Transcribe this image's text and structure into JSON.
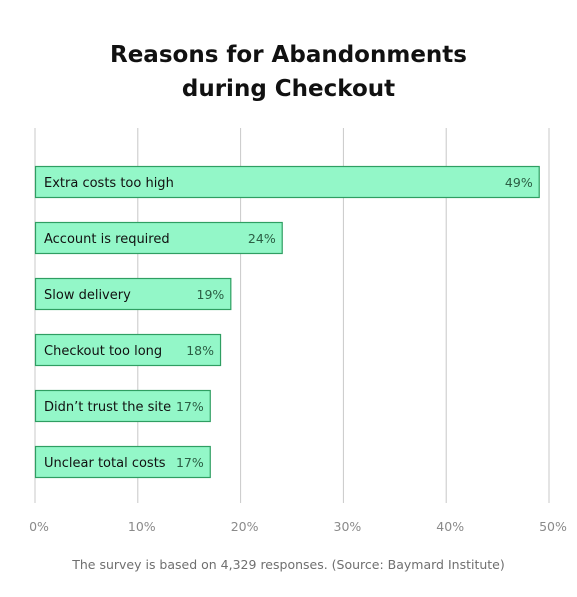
{
  "chart_data": {
    "type": "bar",
    "orientation": "horizontal",
    "title_lines": [
      "Reasons for Abandonments",
      "during Checkout"
    ],
    "categories": [
      "Extra costs too high",
      "Account is required",
      "Slow delivery",
      "Checkout too long",
      "Didn’t trust the site",
      "Unclear total costs"
    ],
    "values": [
      49,
      24,
      19,
      18,
      17,
      17
    ],
    "value_labels": [
      "49%",
      "24%",
      "19%",
      "18%",
      "17%",
      "17%"
    ],
    "xlim": [
      0,
      50
    ],
    "xticks": [
      0,
      10,
      20,
      30,
      40,
      50
    ],
    "xtick_labels": [
      "0%",
      "10%",
      "20%",
      "30%",
      "40%",
      "50%"
    ],
    "grid": "vertical",
    "colors": {
      "bar_fill": "#93f7c8",
      "bar_stroke": "#2f9e62",
      "grid": "#c8c8c8",
      "tick_text": "#8a8a8a"
    }
  },
  "footnote": "The survey is based on 4,329 responses. (Source: Baymard Institute)"
}
